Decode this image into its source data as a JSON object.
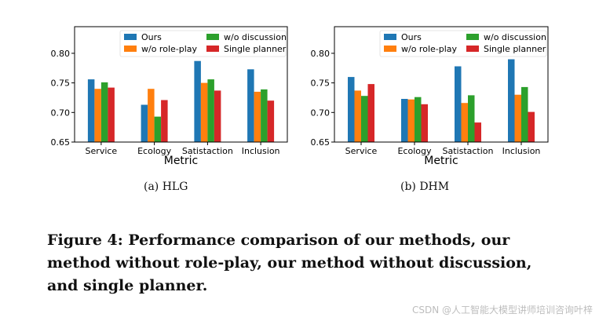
{
  "chart_data": [
    {
      "type": "bar",
      "caption": "(a)  HLG",
      "xlabel": "Metric",
      "ylabel": "",
      "categories": [
        "Service",
        "Ecology",
        "Satistaction",
        "Inclusion"
      ],
      "ylim": [
        0.65,
        0.845
      ],
      "yticks": [
        "0.65",
        "0.70",
        "0.75",
        "0.80"
      ],
      "legend_position": "top-right",
      "series": [
        {
          "name": "Ours",
          "color": "#1f77b4",
          "values": [
            0.756,
            0.713,
            0.787,
            0.773
          ]
        },
        {
          "name": "w/o role-play",
          "color": "#ff7f0e",
          "values": [
            0.74,
            0.74,
            0.75,
            0.735
          ]
        },
        {
          "name": "w/o discussion",
          "color": "#2ca02c",
          "values": [
            0.751,
            0.693,
            0.756,
            0.739
          ]
        },
        {
          "name": "Single planner",
          "color": "#d62728",
          "values": [
            0.742,
            0.721,
            0.737,
            0.72
          ]
        }
      ]
    },
    {
      "type": "bar",
      "caption": "(b)  DHM",
      "xlabel": "Metric",
      "ylabel": "",
      "categories": [
        "Service",
        "Ecology",
        "Satistaction",
        "Inclusion"
      ],
      "ylim": [
        0.65,
        0.845
      ],
      "yticks": [
        "0.65",
        "0.70",
        "0.75",
        "0.80"
      ],
      "legend_position": "top-right",
      "series": [
        {
          "name": "Ours",
          "color": "#1f77b4",
          "values": [
            0.76,
            0.723,
            0.778,
            0.79
          ]
        },
        {
          "name": "w/o role-play",
          "color": "#ff7f0e",
          "values": [
            0.737,
            0.722,
            0.716,
            0.73
          ]
        },
        {
          "name": "w/o discussion",
          "color": "#2ca02c",
          "values": [
            0.728,
            0.726,
            0.729,
            0.743
          ]
        },
        {
          "name": "Single planner",
          "color": "#d62728",
          "values": [
            0.748,
            0.714,
            0.683,
            0.701
          ]
        }
      ]
    }
  ],
  "figure_caption": "Figure 4: Performance comparison of our methods, our method without role-play, our method without discussion, and single planner.",
  "watermark": "CSDN @人工智能大模型讲师培训咨询叶梓"
}
